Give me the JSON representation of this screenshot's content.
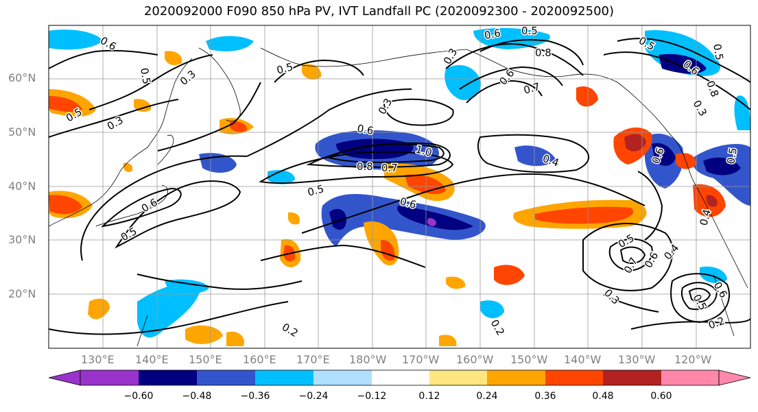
{
  "title": "2020092000 F090 850 hPa PV, IVT Landfall PC (2020092300 - 2020092500)",
  "lat_ticks": [
    "60°N",
    "50°N",
    "40°N",
    "30°N",
    "20°N"
  ],
  "lon_ticks": [
    "130°E",
    "140°E",
    "150°E",
    "160°E",
    "170°E",
    "180°W",
    "170°W",
    "160°W",
    "150°W",
    "140°W",
    "130°W",
    "120°W"
  ],
  "colorbar": {
    "ticks": [
      "−0.60",
      "−0.48",
      "−0.36",
      "−0.24",
      "−0.12",
      "0.12",
      "0.24",
      "0.36",
      "0.48",
      "0.60"
    ],
    "colors": [
      "#9933cc",
      "#000080",
      "#3355cc",
      "#00bfff",
      "#b0e0ff",
      "#ffffff",
      "#ffe680",
      "#ffa500",
      "#ff4500",
      "#b22222",
      "#ff88aa"
    ],
    "levels": [
      -0.6,
      -0.48,
      -0.36,
      -0.24,
      -0.12,
      0.12,
      0.24,
      0.36,
      0.48,
      0.6
    ]
  },
  "contour_labels": [
    "0.6",
    "0.5",
    "0.3",
    "0.3",
    "0.5",
    "0.5",
    "0.3",
    "0.3",
    "0.6",
    "1.0",
    "0.8",
    "0.7",
    "0.5",
    "0.6",
    "0.6",
    "0.5",
    "0.4",
    "0.6",
    "0.5",
    "0.8",
    "0.7",
    "0.6",
    "0.5",
    "0.5",
    "0.3",
    "0.6",
    "0.6",
    "0.5",
    "0.4",
    "0.5",
    "0.6",
    "0.7",
    "0.3",
    "0.2",
    "0.2",
    "0.5",
    "0.4",
    "0.2",
    "0.6",
    "0.8"
  ],
  "colors": {
    "grid": "#999999",
    "coast": "#000000",
    "tick_label": "#808080"
  }
}
